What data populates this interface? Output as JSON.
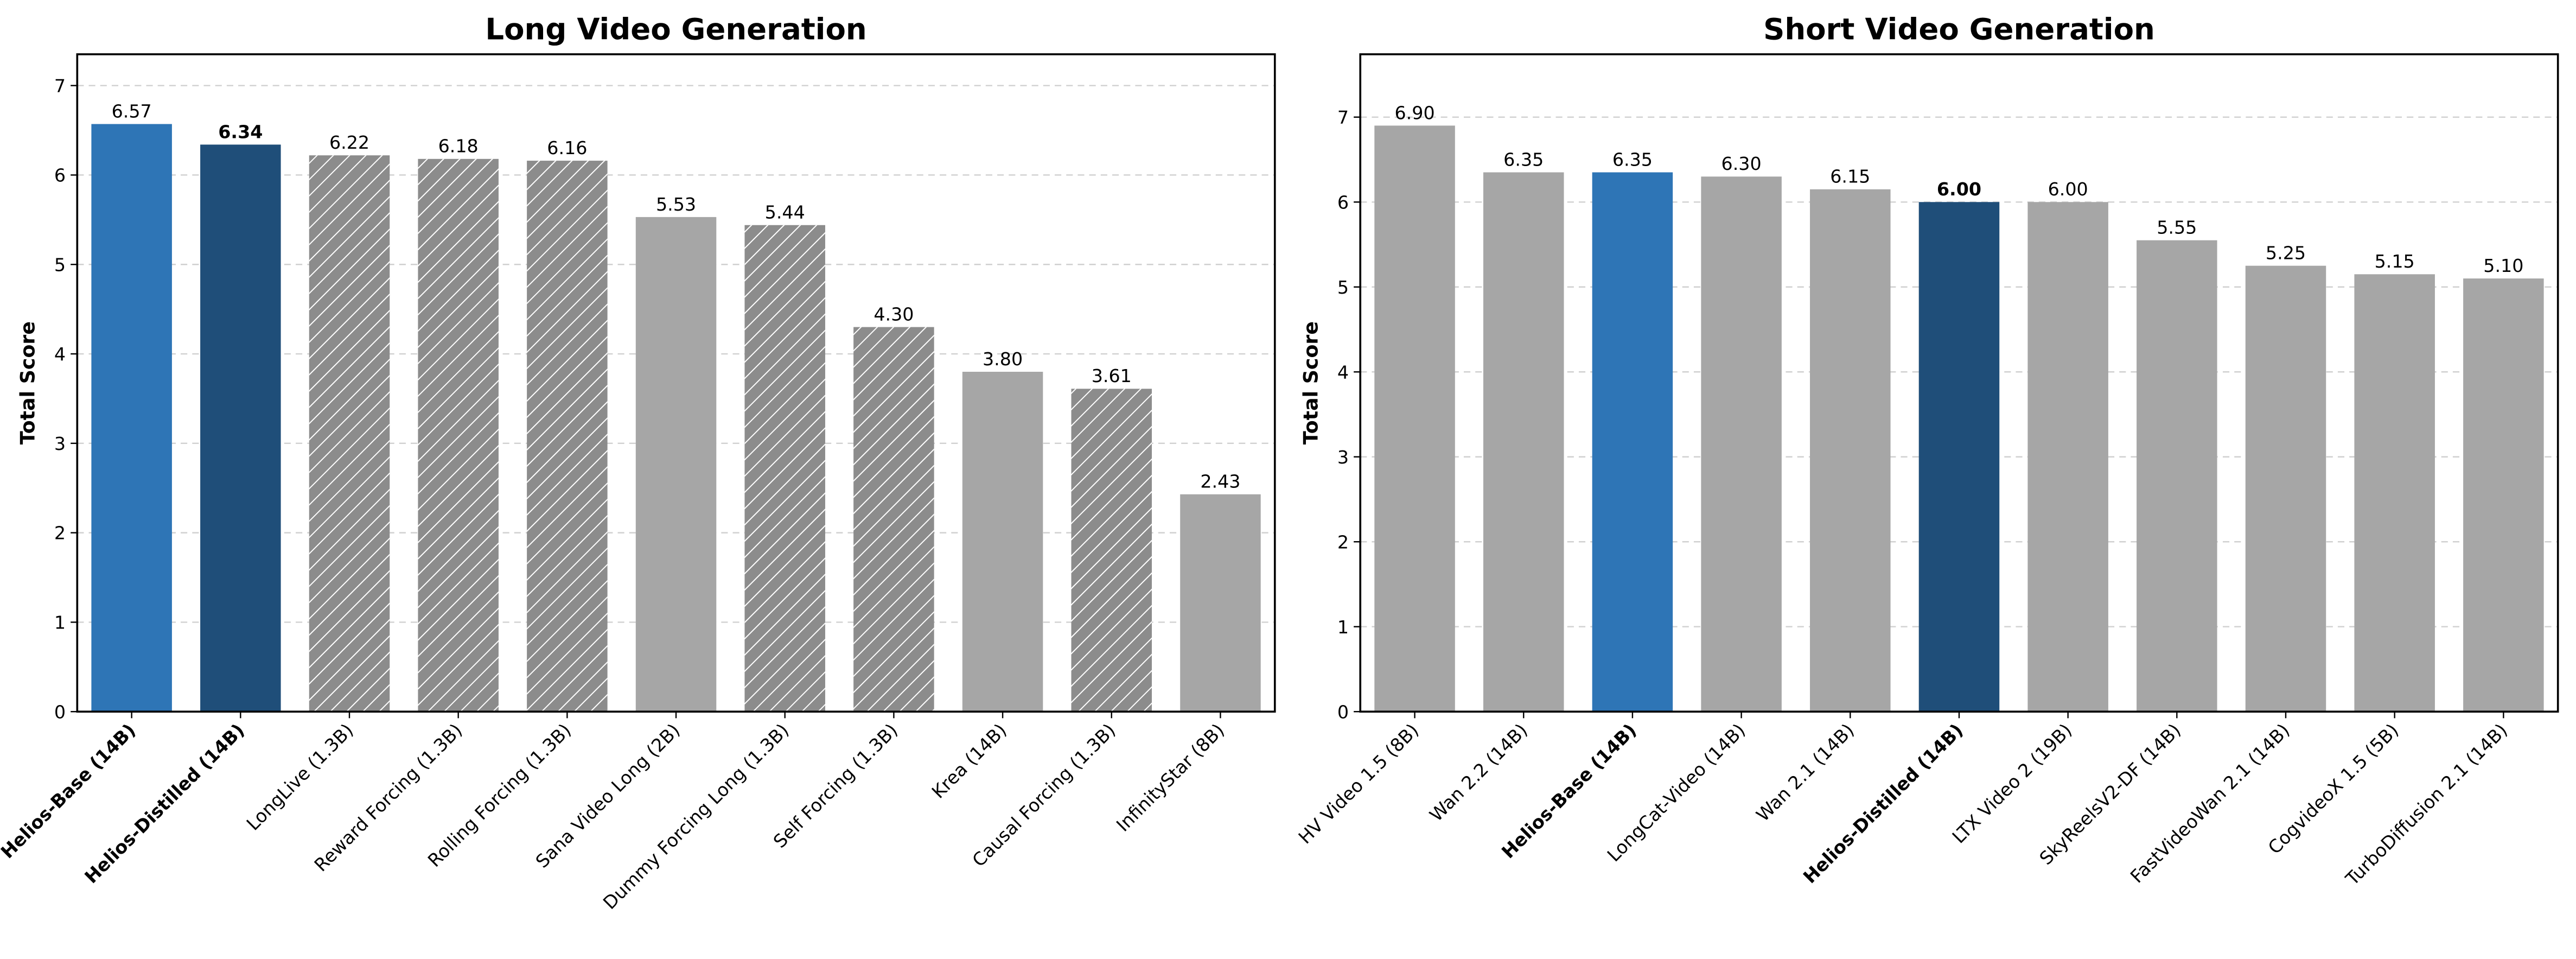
{
  "chart_data": [
    {
      "type": "bar",
      "title": "Long Video Generation",
      "y_label": "Total Score",
      "categories": [
        "Helios-Base (14B)",
        "Helios-Distilled (14B)",
        "LongLive (1.3B)",
        "Reward Forcing (1.3B)",
        "Rolling Forcing (1.3B)",
        "Sana Video Long (2B)",
        "Dummy Forcing Long (1.3B)",
        "Self Forcing (1.3B)",
        "Krea (14B)",
        "Causal Forcing (1.3B)",
        "InfinityStar (8B)"
      ],
      "values": [
        6.57,
        6.34,
        6.22,
        6.18,
        6.16,
        5.53,
        5.44,
        4.3,
        3.8,
        3.61,
        2.43
      ],
      "value_labels": [
        "6.57",
        "6.34",
        "6.22",
        "6.18",
        "6.16",
        "5.53",
        "5.44",
        "4.30",
        "3.80",
        "3.61",
        "2.43"
      ],
      "colors": [
        "#2e75b6",
        "#1f4e79",
        "#8c8c8c",
        "#8c8c8c",
        "#8c8c8c",
        "#a6a6a6",
        "#8c8c8c",
        "#8c8c8c",
        "#a6a6a6",
        "#8c8c8c",
        "#a6a6a6"
      ],
      "hatched": [
        false,
        false,
        true,
        true,
        true,
        false,
        true,
        true,
        false,
        true,
        false
      ],
      "bold_category": [
        true,
        true,
        false,
        false,
        false,
        false,
        false,
        false,
        false,
        false,
        false
      ],
      "bold_value": [
        false,
        true,
        false,
        false,
        false,
        false,
        false,
        false,
        false,
        false,
        false
      ],
      "ylim": [
        0,
        7.35
      ],
      "yticks": [
        0,
        1,
        2,
        3,
        4,
        5,
        6,
        7
      ],
      "grid": true
    },
    {
      "type": "bar",
      "title": "Short Video Generation",
      "y_label": "Total Score",
      "categories": [
        "HV Video 1.5 (8B)",
        "Wan 2.2 (14B)",
        "Helios-Base (14B)",
        "LongCat-Video (14B)",
        "Wan 2.1 (14B)",
        "Helios-Distilled (14B)",
        "LTX Video 2 (19B)",
        "SkyReelsV2-DF (14B)",
        "FastVideoWan 2.1 (14B)",
        "CogvideoX 1.5 (5B)",
        "TurboDiffusion 2.1 (14B)"
      ],
      "values": [
        6.9,
        6.35,
        6.35,
        6.3,
        6.15,
        6.0,
        6.0,
        5.55,
        5.25,
        5.15,
        5.1
      ],
      "value_labels": [
        "6.90",
        "6.35",
        "6.35",
        "6.30",
        "6.15",
        "6.00",
        "6.00",
        "5.55",
        "5.25",
        "5.15",
        "5.10"
      ],
      "colors": [
        "#a6a6a6",
        "#a6a6a6",
        "#2e75b6",
        "#a6a6a6",
        "#a6a6a6",
        "#1f4e79",
        "#a6a6a6",
        "#a6a6a6",
        "#a6a6a6",
        "#a6a6a6",
        "#a6a6a6"
      ],
      "hatched": [
        false,
        false,
        false,
        false,
        false,
        false,
        false,
        false,
        false,
        false,
        false
      ],
      "bold_category": [
        false,
        false,
        true,
        false,
        false,
        true,
        false,
        false,
        false,
        false,
        false
      ],
      "bold_value": [
        false,
        false,
        false,
        false,
        false,
        true,
        false,
        false,
        false,
        false,
        false
      ],
      "ylim": [
        0,
        7.74
      ],
      "yticks": [
        0,
        1,
        2,
        3,
        4,
        5,
        6,
        7
      ],
      "grid": true
    }
  ]
}
